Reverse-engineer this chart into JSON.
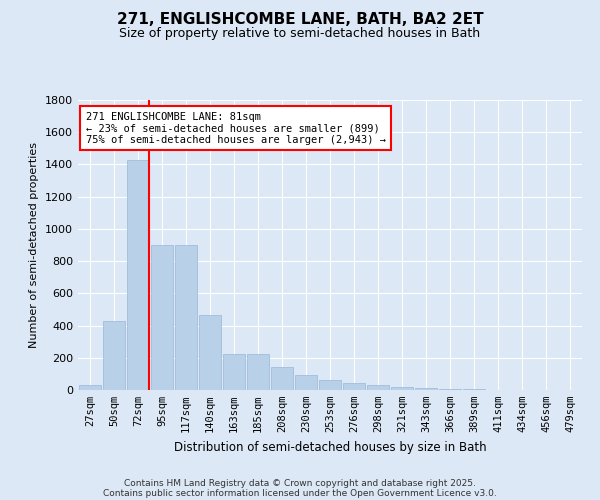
{
  "title": "271, ENGLISHCOMBE LANE, BATH, BA2 2ET",
  "subtitle": "Size of property relative to semi-detached houses in Bath",
  "xlabel": "Distribution of semi-detached houses by size in Bath",
  "ylabel": "Number of semi-detached properties",
  "bar_color": "#b8d0e8",
  "bar_edge_color": "#9ab8d8",
  "background_color": "#dce8f5",
  "grid_color": "#ffffff",
  "categories": [
    "27sqm",
    "50sqm",
    "72sqm",
    "95sqm",
    "117sqm",
    "140sqm",
    "163sqm",
    "185sqm",
    "208sqm",
    "230sqm",
    "253sqm",
    "276sqm",
    "298sqm",
    "321sqm",
    "343sqm",
    "366sqm",
    "389sqm",
    "411sqm",
    "434sqm",
    "456sqm",
    "479sqm"
  ],
  "values": [
    28,
    430,
    1430,
    900,
    900,
    465,
    225,
    225,
    140,
    95,
    60,
    45,
    28,
    18,
    12,
    8,
    5,
    3,
    2,
    1,
    1
  ],
  "ylim": [
    0,
    1800
  ],
  "yticks": [
    0,
    200,
    400,
    600,
    800,
    1000,
    1200,
    1400,
    1600,
    1800
  ],
  "annotation_title": "271 ENGLISHCOMBE LANE: 81sqm",
  "annotation_line1": "← 23% of semi-detached houses are smaller (899)",
  "annotation_line2": "75% of semi-detached houses are larger (2,943) →",
  "footer_line1": "Contains HM Land Registry data © Crown copyright and database right 2025.",
  "footer_line2": "Contains public sector information licensed under the Open Government Licence v3.0."
}
